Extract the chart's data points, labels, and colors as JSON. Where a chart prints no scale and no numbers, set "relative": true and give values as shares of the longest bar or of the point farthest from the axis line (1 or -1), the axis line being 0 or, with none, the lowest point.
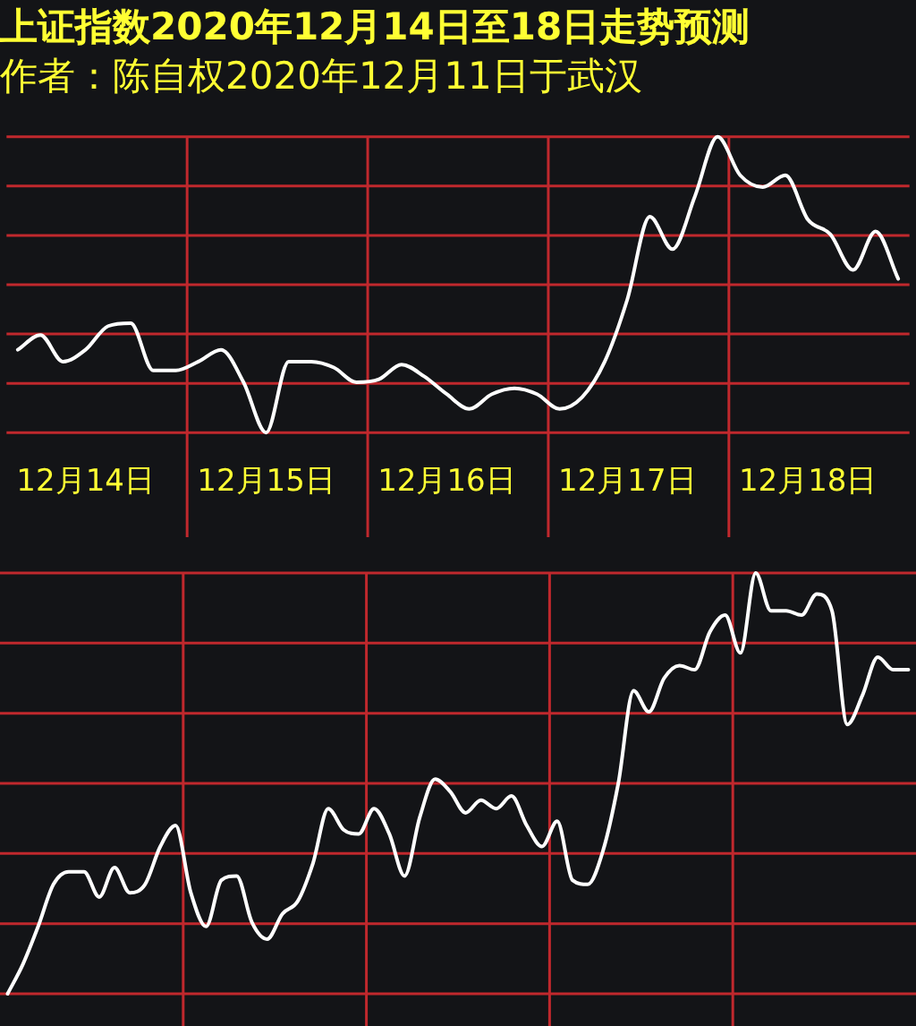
{
  "chart_data": [
    {
      "type": "line",
      "title": "上证指数2020年12月14日至18日走势预测",
      "subtitle": "作者：陈自权2020年12月11日于武汉",
      "relative": true,
      "grid": true,
      "tick_labels": "x",
      "categories": [
        null,
        null,
        null,
        "12月14日",
        null,
        null,
        null,
        null,
        null,
        null,
        null,
        "12月15日",
        null,
        null,
        null,
        null,
        null,
        null,
        null,
        "12月16日",
        null,
        null,
        null,
        null,
        null,
        null,
        null,
        "12月17日",
        null,
        null,
        null,
        null,
        null,
        null,
        null,
        "12月18日",
        null,
        null,
        null,
        null
      ],
      "series": [
        {
          "color": "#ffffff",
          "values": [
            0.28,
            0.33,
            0.24,
            0.28,
            0.36,
            0.37,
            0.21,
            0.21,
            0.24,
            0.28,
            0.17,
            0,
            0.24,
            0.24,
            0.22,
            0.17,
            0.18,
            0.23,
            0.19,
            0.13,
            0.08,
            0.13,
            0.15,
            0.13,
            0.08,
            0.12,
            0.24,
            0.45,
            0.73,
            0.62,
            0.8,
            1,
            0.87,
            0.83,
            0.87,
            0.72,
            0.67,
            0.55,
            0.68,
            0.52
          ]
        }
      ]
    },
    {
      "type": "line",
      "relative": true,
      "grid": true,
      "tick_labels": false,
      "categories": [
        null,
        null,
        null,
        null,
        null,
        null,
        null,
        null,
        null,
        null,
        null,
        null,
        null,
        null,
        null,
        null,
        null,
        null,
        null,
        null,
        null,
        null,
        null,
        null,
        null,
        null,
        null,
        null,
        null,
        null,
        null,
        null,
        null,
        null,
        null,
        null,
        null,
        null,
        null,
        null,
        null,
        null,
        null,
        null,
        null,
        null,
        null,
        null,
        null,
        null,
        null,
        null,
        null,
        null,
        null,
        null,
        null,
        null,
        null,
        null
      ],
      "series": [
        {
          "color": "#ffffff",
          "values": [
            0,
            0.07,
            0.16,
            0.26,
            0.29,
            0.29,
            0.23,
            0.3,
            0.24,
            0.26,
            0.35,
            0.4,
            0.24,
            0.16,
            0.27,
            0.28,
            0.17,
            0.13,
            0.19,
            0.22,
            0.31,
            0.44,
            0.39,
            0.38,
            0.44,
            0.38,
            0.28,
            0.42,
            0.51,
            0.48,
            0.43,
            0.46,
            0.44,
            0.47,
            0.4,
            0.35,
            0.41,
            0.27,
            0.26,
            0.34,
            0.5,
            0.72,
            0.67,
            0.75,
            0.78,
            0.77,
            0.86,
            0.9,
            0.81,
            1,
            0.91,
            0.91,
            0.9,
            0.95,
            0.91,
            0.64,
            0.71,
            0.8,
            0.77,
            0.77
          ]
        }
      ]
    }
  ]
}
